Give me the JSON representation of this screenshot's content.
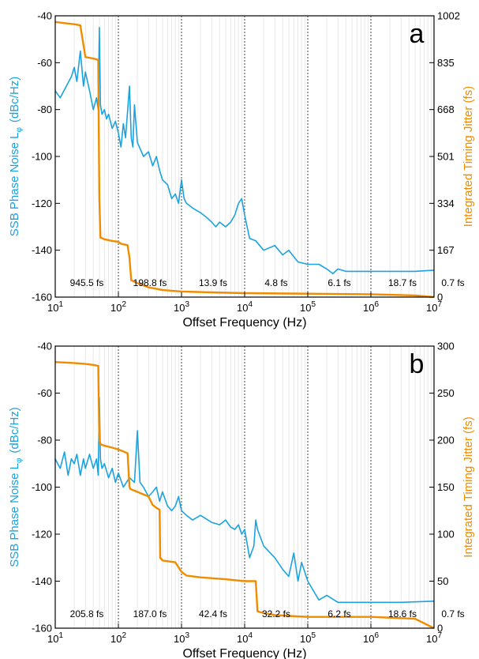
{
  "chart_data": [
    {
      "panel_label": "a",
      "type": "line",
      "xlabel": "Offset Frequency (Hz)",
      "ylabel_left": "SSB Phase Noise L",
      "ylabel_left_sub": "φ",
      "ylabel_left_unit": "(dBc/Hz)",
      "ylabel_right": "Integrated Timing Jitter  (fs)",
      "xscale": "log",
      "xlim": [
        10,
        10000000
      ],
      "ylim_left": [
        -160,
        -40
      ],
      "ylim_right": [
        0,
        1002
      ],
      "x_ticks": [
        {
          "value": 10,
          "base": "10",
          "exp": "1"
        },
        {
          "value": 100,
          "base": "10",
          "exp": "2"
        },
        {
          "value": 1000,
          "base": "10",
          "exp": "3"
        },
        {
          "value": 10000,
          "base": "10",
          "exp": "4"
        },
        {
          "value": 100000,
          "base": "10",
          "exp": "5"
        },
        {
          "value": 1000000,
          "base": "10",
          "exp": "6"
        },
        {
          "value": 10000000,
          "base": "10",
          "exp": "7"
        }
      ],
      "y_left_ticks": [
        "-160",
        "-140",
        "-120",
        "-100",
        "-80",
        "-60",
        "-40"
      ],
      "y_right_ticks": [
        "0",
        "167",
        "334",
        "501",
        "668",
        "835",
        "1002"
      ],
      "decade_jitter_labels": [
        "945.5 fs",
        "198.8 fs",
        "13.9 fs",
        "4.8 fs",
        "6.1 fs",
        "18.7 fs",
        "0.7 fs"
      ],
      "series": [
        {
          "name": "SSB Phase Noise",
          "axis": "left",
          "color": "#1ba3e0",
          "x": [
            10,
            12,
            15,
            18,
            20,
            22,
            25,
            28,
            30,
            35,
            40,
            45,
            48,
            50,
            52,
            55,
            60,
            65,
            70,
            80,
            90,
            100,
            110,
            120,
            130,
            150,
            160,
            170,
            180,
            200,
            250,
            300,
            350,
            400,
            450,
            500,
            600,
            700,
            800,
            900,
            1000,
            1100,
            1200,
            1500,
            2000,
            2500,
            3000,
            3500,
            4000,
            5000,
            6000,
            7000,
            8000,
            9000,
            10000,
            12000,
            15000,
            20000,
            30000,
            40000,
            50000,
            70000,
            100000,
            150000,
            200000,
            250000,
            300000,
            400000,
            500000,
            1000000,
            2000000,
            5000000,
            10000000
          ],
          "y": [
            -72,
            -75,
            -70,
            -66,
            -62,
            -68,
            -55,
            -70,
            -64,
            -72,
            -80,
            -75,
            -80,
            -45,
            -78,
            -82,
            -80,
            -84,
            -82,
            -88,
            -85,
            -90,
            -96,
            -86,
            -92,
            -70,
            -92,
            -96,
            -78,
            -94,
            -100,
            -98,
            -104,
            -100,
            -106,
            -110,
            -112,
            -118,
            -116,
            -120,
            -110,
            -118,
            -120,
            -122,
            -124,
            -126,
            -128,
            -130,
            -128,
            -130,
            -128,
            -125,
            -120,
            -118,
            -125,
            -135,
            -136,
            -140,
            -138,
            -142,
            -140,
            -145,
            -146,
            -146,
            -148,
            -150,
            -148,
            -149,
            -149,
            -149,
            -149,
            -149,
            -148.5
          ]
        },
        {
          "name": "Integrated Timing Jitter",
          "axis": "right",
          "color": "#f08c00",
          "x": [
            10,
            15,
            20,
            25,
            30,
            40,
            48,
            50,
            52,
            55,
            60,
            80,
            100,
            110,
            120,
            140,
            150,
            160,
            200,
            300,
            500,
            1000,
            3000,
            10000,
            100000,
            1000000,
            5000000,
            10000000
          ],
          "y": [
            980,
            975,
            972,
            968,
            855,
            850,
            845,
            350,
            212,
            210,
            206,
            200,
            197,
            190,
            188,
            185,
            140,
            60,
            50,
            35,
            25,
            20,
            17,
            14,
            12,
            10,
            6,
            0
          ]
        }
      ]
    },
    {
      "panel_label": "b",
      "type": "line",
      "xlabel": "Offset Frequency (Hz)",
      "ylabel_left": "SSB Phase Noise L",
      "ylabel_left_sub": "φ",
      "ylabel_left_unit": "(dBc/Hz)",
      "ylabel_right": "Integrated Timing Jitter  (fs)",
      "xscale": "log",
      "xlim": [
        10,
        10000000
      ],
      "ylim_left": [
        -160,
        -40
      ],
      "ylim_right": [
        0,
        300
      ],
      "x_ticks": [
        {
          "value": 10,
          "base": "10",
          "exp": "1"
        },
        {
          "value": 100,
          "base": "10",
          "exp": "2"
        },
        {
          "value": 1000,
          "base": "10",
          "exp": "3"
        },
        {
          "value": 10000,
          "base": "10",
          "exp": "4"
        },
        {
          "value": 100000,
          "base": "10",
          "exp": "5"
        },
        {
          "value": 1000000,
          "base": "10",
          "exp": "6"
        },
        {
          "value": 10000000,
          "base": "10",
          "exp": "7"
        }
      ],
      "y_left_ticks": [
        "-160",
        "-140",
        "-120",
        "-100",
        "-80",
        "-60",
        "-40"
      ],
      "y_right_ticks": [
        "0",
        "50",
        "100",
        "150",
        "200",
        "250",
        "300"
      ],
      "decade_jitter_labels": [
        "205.8 fs",
        "187.0 fs",
        "42.4 fs",
        "32.2 fs",
        "6.2 fs",
        "18.6 fs",
        "0.7 fs"
      ],
      "series": [
        {
          "name": "SSB Phase Noise",
          "axis": "left",
          "color": "#1ba3e0",
          "x": [
            10,
            12,
            14,
            16,
            18,
            20,
            22,
            25,
            28,
            30,
            35,
            40,
            45,
            48,
            50,
            52,
            55,
            60,
            70,
            80,
            90,
            100,
            120,
            150,
            180,
            200,
            220,
            250,
            300,
            350,
            400,
            450,
            500,
            600,
            700,
            800,
            900,
            1000,
            1200,
            1500,
            2000,
            3000,
            4000,
            5000,
            6000,
            7000,
            8000,
            9000,
            10000,
            12000,
            14000,
            15000,
            16000,
            20000,
            30000,
            40000,
            50000,
            60000,
            70000,
            80000,
            100000,
            150000,
            200000,
            300000,
            500000,
            1000000,
            3000000,
            10000000
          ],
          "y": [
            -88,
            -92,
            -85,
            -95,
            -88,
            -90,
            -86,
            -95,
            -88,
            -92,
            -86,
            -92,
            -88,
            -95,
            -62,
            -88,
            -92,
            -90,
            -96,
            -92,
            -98,
            -94,
            -100,
            -96,
            -98,
            -76,
            -98,
            -100,
            -104,
            -102,
            -100,
            -106,
            -102,
            -108,
            -110,
            -108,
            -104,
            -110,
            -112,
            -114,
            -112,
            -115,
            -116,
            -114,
            -117,
            -118,
            -116,
            -120,
            -118,
            -130,
            -125,
            -114,
            -118,
            -125,
            -130,
            -135,
            -138,
            -128,
            -140,
            -132,
            -140,
            -148,
            -146,
            -149,
            -149,
            -149,
            -149,
            -148.5
          ]
        },
        {
          "name": "Integrated Timing Jitter",
          "axis": "right",
          "color": "#f08c00",
          "x": [
            10,
            20,
            30,
            40,
            48,
            50,
            52,
            55,
            60,
            80,
            100,
            120,
            140,
            150,
            155,
            200,
            300,
            350,
            400,
            450,
            460,
            500,
            800,
            1000,
            1200,
            2000,
            5000,
            10000,
            15000,
            16000,
            20000,
            30000,
            50000,
            100000,
            1000000,
            5000000,
            10000000
          ],
          "y": [
            283,
            282,
            281,
            280,
            279,
            200,
            196,
            195,
            194,
            192,
            190,
            188,
            186,
            150,
            148,
            145,
            140,
            131,
            128,
            126,
            75,
            72,
            70,
            60,
            56,
            54,
            52,
            50,
            50,
            18,
            16,
            14,
            13,
            12,
            12,
            10,
            0
          ]
        }
      ]
    }
  ]
}
